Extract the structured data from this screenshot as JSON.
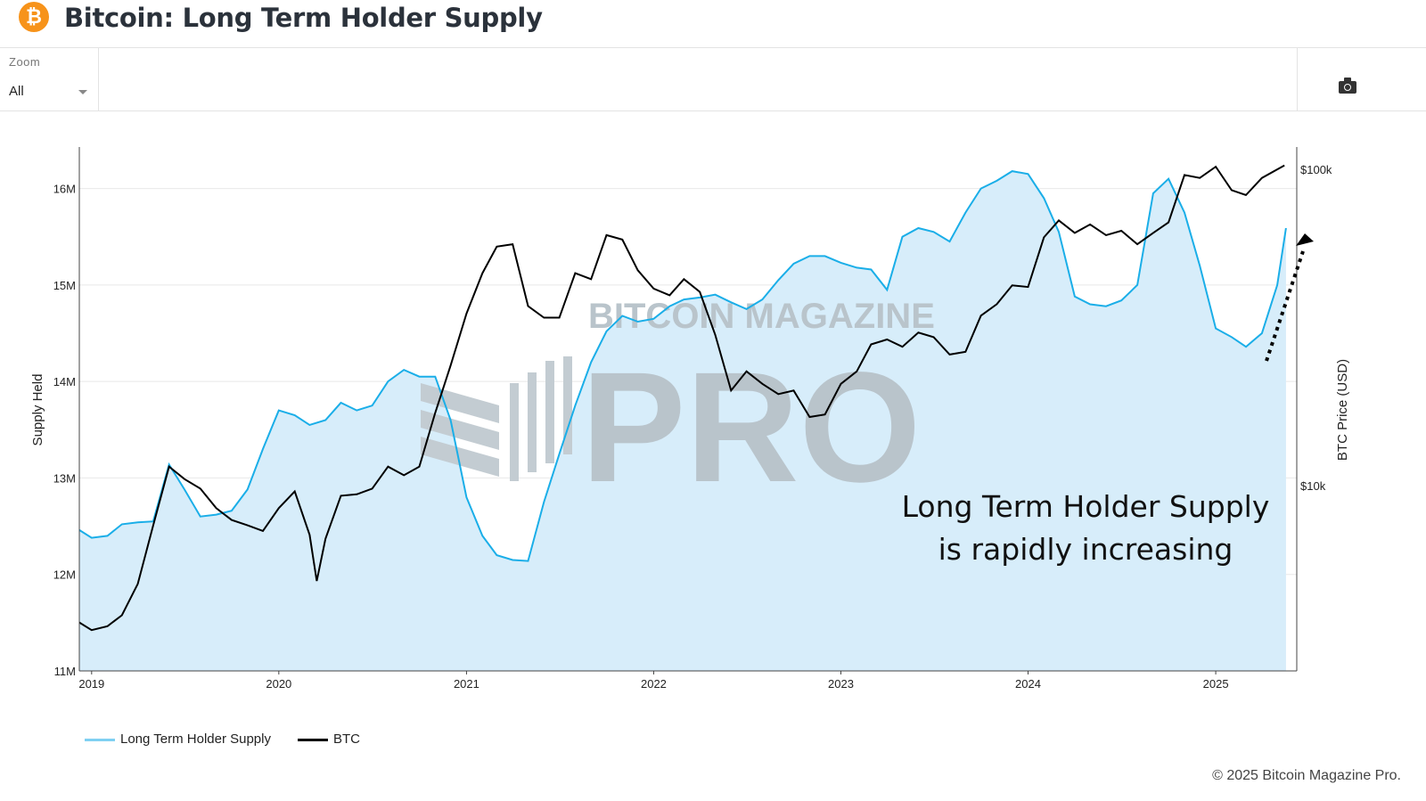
{
  "header": {
    "title": "Bitcoin: Long Term Holder Supply",
    "logo_glyph": "₿",
    "icon": "bitcoin-logo-icon"
  },
  "toolbar": {
    "zoom_label": "Zoom",
    "zoom_value": "All",
    "camera_icon": "camera-icon"
  },
  "watermark": {
    "top": "BITCOIN MAGAZINE",
    "main": "PRO"
  },
  "annotation": {
    "line1": "Long Term Holder Supply",
    "line2": "is rapidly increasing"
  },
  "footer": {
    "copyright": "© 2025 Bitcoin Magazine Pro."
  },
  "colors": {
    "lth_line": "#1aaee8",
    "lth_fill": "#d7edfa",
    "btc_line": "#000000",
    "title": "#2b323b",
    "btc_orange": "#f7931a"
  },
  "chart_data": {
    "type": "line",
    "title": "Bitcoin: Long Term Holder Supply",
    "xlim": [
      "2018-12-08",
      "2025-06-08"
    ],
    "x_ticks": [
      "2019",
      "2020",
      "2021",
      "2022",
      "2023",
      "2024",
      "2025"
    ],
    "y_left": {
      "label": "Supply Held",
      "lim": [
        11,
        16.43
      ],
      "unit": "M",
      "ticks": [
        11,
        12,
        13,
        14,
        15,
        16
      ],
      "tick_labels": [
        "11M",
        "12M",
        "13M",
        "14M",
        "15M",
        "16M"
      ]
    },
    "y_right": {
      "label": "BTC Price (USD)",
      "scale": "log",
      "lim": [
        2600,
        117700
      ],
      "ticks": [
        10000,
        100000
      ],
      "tick_labels": [
        "$10k",
        "$100k"
      ]
    },
    "grid": true,
    "legend": {
      "placement": "bottom-left",
      "entries": [
        "Long Term Holder Supply",
        "BTC"
      ]
    },
    "series": [
      {
        "name": "Long Term Holder Supply",
        "axis": "left",
        "style": "area",
        "dates": [
          "2018-12-08",
          "2019-01-01",
          "2019-02-01",
          "2019-03-01",
          "2019-04-01",
          "2019-05-01",
          "2019-06-01",
          "2019-07-01",
          "2019-08-01",
          "2019-09-01",
          "2019-10-01",
          "2019-11-01",
          "2019-12-01",
          "2020-01-01",
          "2020-02-01",
          "2020-03-01",
          "2020-04-01",
          "2020-05-01",
          "2020-06-01",
          "2020-07-01",
          "2020-08-01",
          "2020-09-01",
          "2020-10-01",
          "2020-11-01",
          "2020-12-01",
          "2021-01-01",
          "2021-02-01",
          "2021-03-01",
          "2021-04-01",
          "2021-05-01",
          "2021-06-01",
          "2021-07-01",
          "2021-08-01",
          "2021-09-01",
          "2021-10-01",
          "2021-11-01",
          "2021-12-01",
          "2022-01-01",
          "2022-02-01",
          "2022-03-01",
          "2022-04-01",
          "2022-05-01",
          "2022-06-01",
          "2022-07-01",
          "2022-08-01",
          "2022-09-01",
          "2022-10-01",
          "2022-11-01",
          "2022-12-01",
          "2023-01-01",
          "2023-02-01",
          "2023-03-01",
          "2023-04-01",
          "2023-05-01",
          "2023-06-01",
          "2023-07-01",
          "2023-08-01",
          "2023-09-01",
          "2023-10-01",
          "2023-11-01",
          "2023-12-01",
          "2024-01-01",
          "2024-02-01",
          "2024-03-01",
          "2024-04-01",
          "2024-05-01",
          "2024-06-01",
          "2024-07-01",
          "2024-08-01",
          "2024-09-01",
          "2024-10-01",
          "2024-11-01",
          "2024-12-01",
          "2025-01-01",
          "2025-02-01",
          "2025-03-01",
          "2025-04-01",
          "2025-05-01",
          "2025-05-18"
        ],
        "values": [
          12.46,
          12.38,
          12.4,
          12.52,
          12.54,
          12.55,
          13.14,
          12.88,
          12.6,
          12.62,
          12.66,
          12.88,
          13.3,
          13.7,
          13.65,
          13.55,
          13.6,
          13.78,
          13.7,
          13.75,
          14.0,
          14.12,
          14.05,
          14.05,
          13.6,
          12.8,
          12.4,
          12.2,
          12.15,
          12.14,
          12.75,
          13.25,
          13.75,
          14.2,
          14.52,
          14.68,
          14.62,
          14.65,
          14.78,
          14.85,
          14.87,
          14.9,
          14.82,
          14.75,
          14.85,
          15.05,
          15.22,
          15.3,
          15.3,
          15.23,
          15.18,
          15.16,
          14.95,
          15.5,
          15.59,
          15.55,
          15.45,
          15.75,
          16.0,
          16.08,
          16.18,
          16.15,
          15.9,
          15.55,
          14.88,
          14.8,
          14.78,
          14.84,
          15.0,
          15.95,
          16.1,
          15.75,
          15.2,
          14.55,
          14.46,
          14.36,
          14.5,
          15.0,
          15.59
        ]
      },
      {
        "name": "BTC",
        "axis": "right",
        "style": "line",
        "dates": [
          "2018-12-08",
          "2019-01-01",
          "2019-02-01",
          "2019-03-01",
          "2019-04-01",
          "2019-05-01",
          "2019-06-01",
          "2019-07-01",
          "2019-08-01",
          "2019-09-01",
          "2019-10-01",
          "2019-11-01",
          "2019-12-01",
          "2020-01-01",
          "2020-02-01",
          "2020-03-01",
          "2020-03-15",
          "2020-04-01",
          "2020-05-01",
          "2020-06-01",
          "2020-07-01",
          "2020-08-01",
          "2020-09-01",
          "2020-10-01",
          "2020-11-01",
          "2020-12-01",
          "2021-01-01",
          "2021-02-01",
          "2021-03-01",
          "2021-04-01",
          "2021-05-01",
          "2021-06-01",
          "2021-07-01",
          "2021-08-01",
          "2021-09-01",
          "2021-10-01",
          "2021-11-01",
          "2021-12-01",
          "2022-01-01",
          "2022-02-01",
          "2022-03-01",
          "2022-04-01",
          "2022-05-01",
          "2022-06-01",
          "2022-07-01",
          "2022-08-01",
          "2022-09-01",
          "2022-10-01",
          "2022-11-01",
          "2022-12-01",
          "2023-01-01",
          "2023-02-01",
          "2023-03-01",
          "2023-04-01",
          "2023-05-01",
          "2023-06-01",
          "2023-07-01",
          "2023-08-01",
          "2023-09-01",
          "2023-10-01",
          "2023-11-01",
          "2023-12-01",
          "2024-01-01",
          "2024-02-01",
          "2024-03-01",
          "2024-04-01",
          "2024-05-01",
          "2024-06-01",
          "2024-07-01",
          "2024-08-01",
          "2024-09-01",
          "2024-10-01",
          "2024-11-01",
          "2024-12-01",
          "2025-01-01",
          "2025-02-01",
          "2025-03-01",
          "2025-04-01",
          "2025-05-15"
        ],
        "values": [
          3700,
          3500,
          3600,
          3900,
          4900,
          7500,
          11500,
          10500,
          9800,
          8500,
          7800,
          7500,
          7200,
          8500,
          9600,
          7000,
          5000,
          6800,
          9300,
          9400,
          9800,
          11500,
          10800,
          11500,
          17000,
          24000,
          35000,
          47000,
          57000,
          58000,
          37000,
          34000,
          34000,
          47000,
          45000,
          62000,
          60000,
          48000,
          42000,
          40000,
          45000,
          41000,
          30000,
          20000,
          23000,
          21000,
          19500,
          20000,
          16500,
          16800,
          21000,
          23000,
          28000,
          29000,
          27500,
          30500,
          29500,
          26000,
          26500,
          34500,
          37500,
          43000,
          42500,
          61000,
          69000,
          63000,
          67000,
          62000,
          64000,
          58000,
          63000,
          68000,
          96000,
          94000,
          102000,
          86000,
          83000,
          94000,
          103000
        ]
      }
    ]
  }
}
